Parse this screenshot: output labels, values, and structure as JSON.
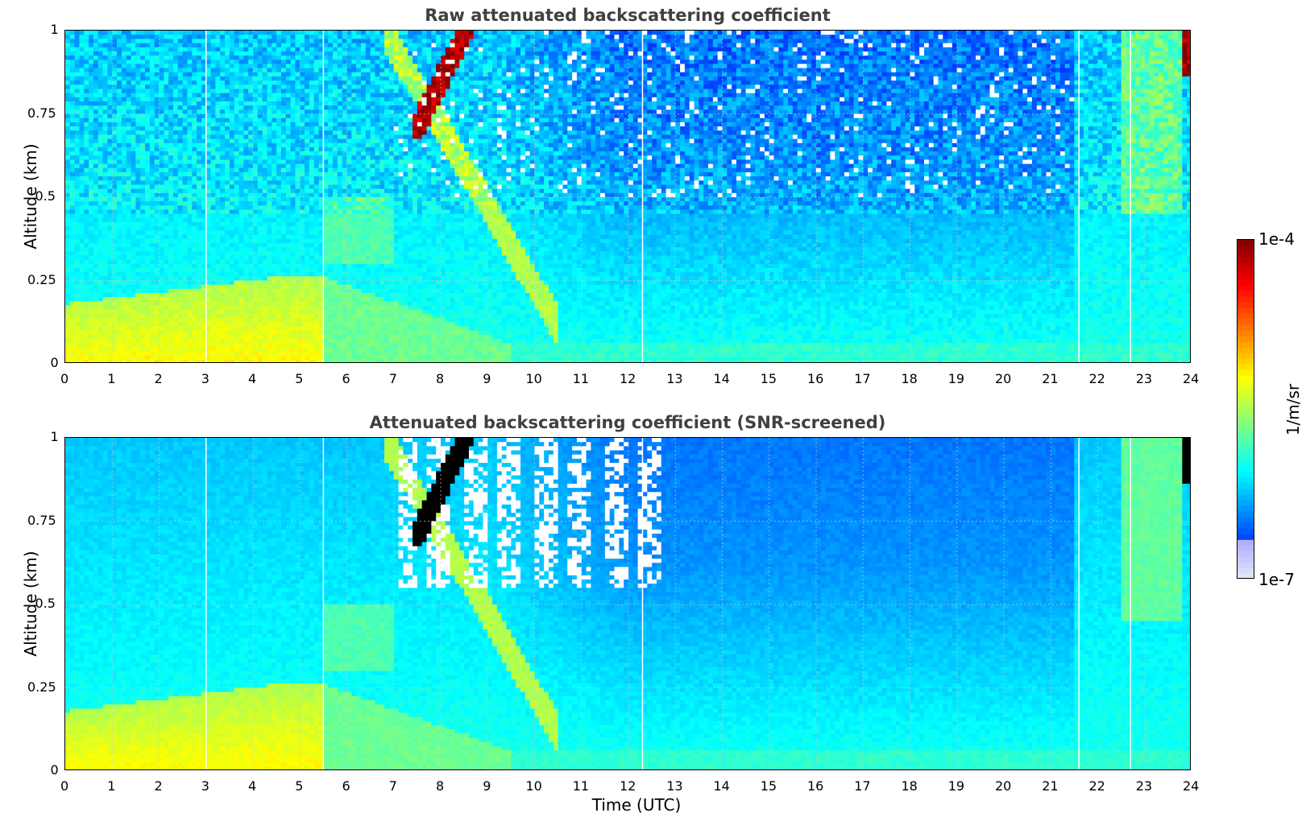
{
  "chart_data": [
    {
      "type": "heatmap",
      "title": "Raw attenuated backscattering coefficient",
      "xlabel": "",
      "ylabel": "Altitude (km)",
      "xlim": [
        0,
        24
      ],
      "ylim": [
        0,
        1
      ],
      "x_ticks": [
        "0",
        "1",
        "2",
        "3",
        "4",
        "5",
        "6",
        "7",
        "8",
        "9",
        "10",
        "11",
        "12",
        "13",
        "14",
        "15",
        "16",
        "17",
        "18",
        "19",
        "20",
        "21",
        "22",
        "23",
        "24"
      ],
      "y_ticks": [
        "0",
        "0.25",
        "0.5",
        "0.75",
        "1"
      ],
      "grid": true,
      "data_gaps_utc": [
        3.0,
        5.5,
        12.3,
        21.6,
        22.7
      ],
      "features": [
        {
          "name": "boundary layer aerosol",
          "x_range": [
            0,
            5.5
          ],
          "y_range": [
            0,
            0.26
          ],
          "level": "high"
        },
        {
          "name": "cloud",
          "x_range": [
            7.4,
            8.8
          ],
          "y_range": [
            0.65,
            1.0
          ],
          "level": "saturated"
        },
        {
          "name": "cloud",
          "x_range": [
            23.8,
            24
          ],
          "y_range": [
            0.85,
            1.0
          ],
          "level": "saturated"
        }
      ]
    },
    {
      "type": "heatmap",
      "title": "Attenuated backscattering coefficient (SNR-screened)",
      "xlabel": "Time (UTC)",
      "ylabel": "Altitude (km)",
      "xlim": [
        0,
        24
      ],
      "ylim": [
        0,
        1
      ],
      "x_ticks": [
        "0",
        "1",
        "2",
        "3",
        "4",
        "5",
        "6",
        "7",
        "8",
        "9",
        "10",
        "11",
        "12",
        "13",
        "14",
        "15",
        "16",
        "17",
        "18",
        "19",
        "20",
        "21",
        "22",
        "23",
        "24"
      ],
      "y_ticks": [
        "0",
        "0.25",
        "0.5",
        "0.75",
        "1"
      ],
      "grid": true,
      "data_gaps_utc": [
        3.0,
        5.5,
        12.3,
        21.6,
        22.7
      ],
      "screened_regions": [
        {
          "x_range": [
            7.1,
            13.0
          ],
          "y_range": [
            0.55,
            1.0
          ]
        }
      ]
    }
  ],
  "colorbar": {
    "max_label": "1e-4",
    "min_label": "1e-7",
    "unit": "1/m/sr",
    "scale": "log",
    "colormap": "jet"
  }
}
